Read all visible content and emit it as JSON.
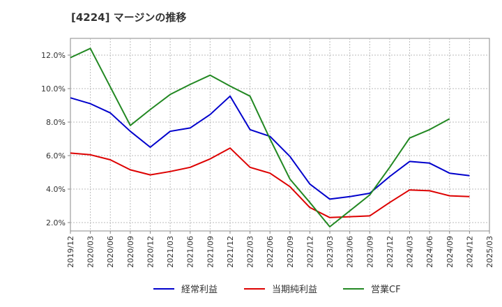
{
  "chart_data": {
    "type": "line",
    "title": "[4224]  マージンの推移",
    "xlabel": "",
    "ylabel": "",
    "x": [
      "2019/12",
      "2020/03",
      "2020/06",
      "2020/09",
      "2020/12",
      "2021/03",
      "2021/06",
      "2021/09",
      "2021/12",
      "2022/03",
      "2022/06",
      "2022/09",
      "2022/12",
      "2023/03",
      "2023/06",
      "2023/09",
      "2023/12",
      "2024/03",
      "2024/06",
      "2024/09",
      "2024/12",
      "2025/03"
    ],
    "ylim": [
      1.5,
      13.0
    ],
    "yticks": [
      2.0,
      4.0,
      6.0,
      8.0,
      10.0,
      12.0
    ],
    "ytick_labels": [
      "2.0%",
      "4.0%",
      "6.0%",
      "8.0%",
      "10.0%",
      "12.0%"
    ],
    "grid": true,
    "legend_position": "bottom",
    "series": [
      {
        "name": "経常利益",
        "color": "#0000cc",
        "values": [
          9.45,
          9.1,
          8.55,
          7.45,
          6.5,
          7.45,
          7.65,
          8.45,
          9.55,
          7.55,
          7.15,
          5.95,
          4.3,
          3.4,
          3.55,
          3.75,
          4.75,
          5.65,
          5.55,
          4.95,
          4.8,
          null
        ]
      },
      {
        "name": "当期純利益",
        "color": "#dd0000",
        "values": [
          6.15,
          6.05,
          5.75,
          5.15,
          4.85,
          5.05,
          5.3,
          5.8,
          6.45,
          5.3,
          4.95,
          4.15,
          2.9,
          2.3,
          2.35,
          2.4,
          3.2,
          3.95,
          3.9,
          3.6,
          3.55,
          null
        ]
      },
      {
        "name": "営業CF",
        "color": "#228822",
        "values": [
          11.85,
          12.4,
          10.1,
          7.8,
          8.75,
          9.65,
          10.25,
          10.8,
          10.15,
          9.55,
          7.0,
          4.6,
          3.2,
          1.75,
          2.7,
          3.65,
          5.3,
          7.05,
          7.55,
          8.2,
          null,
          null
        ]
      }
    ]
  }
}
